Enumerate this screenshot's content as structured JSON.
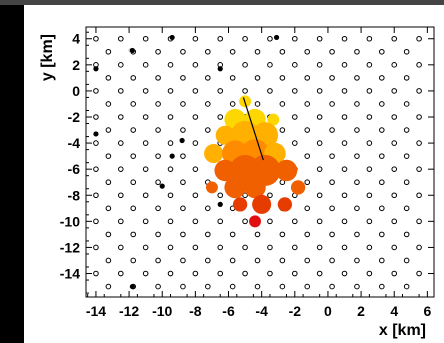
{
  "chart_data": {
    "type": "scatter",
    "title": "",
    "xlabel": "x [km]",
    "ylabel": "y [km]",
    "xlim": [
      -14.6,
      6.4
    ],
    "ylim": [
      -15.8,
      4.9
    ],
    "xticks": [
      -14,
      -12,
      -10,
      -8,
      -6,
      -4,
      -2,
      0,
      2,
      4,
      6
    ],
    "yticks": [
      -14,
      -12,
      -10,
      -8,
      -6,
      -4,
      -2,
      0,
      2,
      4
    ],
    "grid": false,
    "colors": {
      "open_station": "#000000",
      "triggered_dark": "#000000",
      "triggered_light": "#cccccc",
      "signal_scale": [
        "#ffd700",
        "#ffb000",
        "#ff8c00",
        "#f06000",
        "#e63c00",
        "#e01010"
      ]
    },
    "station_grid": {
      "x_start": -14.0,
      "x_end": 6.0,
      "x_spacing": 1.5,
      "row_spacing": 1.0,
      "alternate_row_offset": 0.75,
      "y_top": 4.0,
      "y_bottom": -15.0
    },
    "black_stations": [
      {
        "x": -9.4,
        "y": 4.1
      },
      {
        "x": -3.1,
        "y": 4.1
      },
      {
        "x": -11.8,
        "y": 3.1
      },
      {
        "x": -14.0,
        "y": 1.7
      },
      {
        "x": -6.5,
        "y": 1.7
      },
      {
        "x": -14.0,
        "y": -3.3
      },
      {
        "x": -8.8,
        "y": -3.8
      },
      {
        "x": -9.4,
        "y": -5.0
      },
      {
        "x": -10.0,
        "y": -7.3
      },
      {
        "x": -6.5,
        "y": -8.7
      },
      {
        "x": -11.8,
        "y": -15.0
      }
    ],
    "gray_stations": [
      {
        "x": -11.9,
        "y": 3.1
      }
    ],
    "signal_stations": [
      {
        "x": -5.0,
        "y": -0.8,
        "size": 0.5,
        "color": "#ffd700"
      },
      {
        "x": -5.6,
        "y": -2.2,
        "size": 0.9,
        "color": "#ffd700"
      },
      {
        "x": -4.4,
        "y": -2.2,
        "size": 0.9,
        "color": "#ffd700"
      },
      {
        "x": -3.3,
        "y": -2.2,
        "size": 0.5,
        "color": "#ffd700"
      },
      {
        "x": -6.2,
        "y": -3.4,
        "size": 0.8,
        "color": "#ffb000"
      },
      {
        "x": -5.0,
        "y": -3.4,
        "size": 1.2,
        "color": "#ffb000"
      },
      {
        "x": -3.8,
        "y": -3.4,
        "size": 1.1,
        "color": "#ffb000"
      },
      {
        "x": -6.9,
        "y": -4.8,
        "size": 0.8,
        "color": "#ffb000"
      },
      {
        "x": -5.6,
        "y": -4.8,
        "size": 1.1,
        "color": "#ff8c00"
      },
      {
        "x": -4.4,
        "y": -4.8,
        "size": 1.2,
        "color": "#ff8c00"
      },
      {
        "x": -3.2,
        "y": -4.8,
        "size": 0.9,
        "color": "#ffb000"
      },
      {
        "x": -6.2,
        "y": -6.1,
        "size": 0.9,
        "color": "#f06000"
      },
      {
        "x": -5.0,
        "y": -6.1,
        "size": 1.3,
        "color": "#f06000"
      },
      {
        "x": -3.8,
        "y": -6.1,
        "size": 1.3,
        "color": "#f06000"
      },
      {
        "x": -2.5,
        "y": -6.1,
        "size": 0.9,
        "color": "#f06000"
      },
      {
        "x": -5.6,
        "y": -7.4,
        "size": 0.9,
        "color": "#f06000"
      },
      {
        "x": -4.4,
        "y": -7.4,
        "size": 0.9,
        "color": "#f06000"
      },
      {
        "x": -7.0,
        "y": -7.4,
        "size": 0.5,
        "color": "#f06000"
      },
      {
        "x": -1.8,
        "y": -7.4,
        "size": 0.6,
        "color": "#f06000"
      },
      {
        "x": -5.3,
        "y": -8.7,
        "size": 0.6,
        "color": "#e63c00"
      },
      {
        "x": -4.0,
        "y": -8.7,
        "size": 0.8,
        "color": "#e63c00"
      },
      {
        "x": -2.6,
        "y": -8.7,
        "size": 0.6,
        "color": "#e63c00"
      },
      {
        "x": -4.4,
        "y": -10.0,
        "size": 0.5,
        "color": "#e01010"
      }
    ],
    "shower_axis": {
      "x1": -5.1,
      "y1": -0.5,
      "x2": -3.9,
      "y2": -5.3
    }
  }
}
